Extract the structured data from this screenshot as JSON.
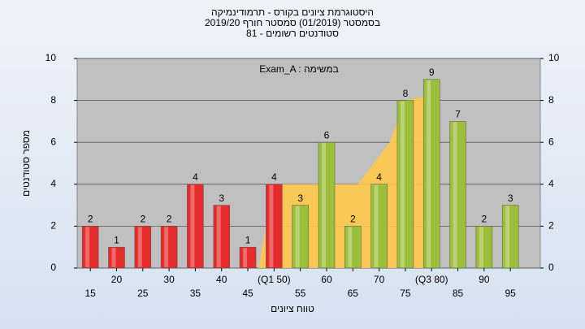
{
  "chart_data": {
    "type": "bar",
    "title": "היסטוגרמת ציונים בקורס - תרמודינמיקה",
    "subtitle": "בסמסטר  (01/2019)  סמסטר חורף 2019/20",
    "subtitle2": "81 - סטודנטים רשומים",
    "annotation": "Exam_A : במשימה",
    "xlabel": "טווח ציונים",
    "ylabel": "מספר סטודנטים",
    "x": [
      15,
      20,
      25,
      30,
      35,
      40,
      45,
      50,
      55,
      60,
      65,
      70,
      75,
      80,
      85,
      90,
      95
    ],
    "values": [
      2,
      1,
      2,
      2,
      4,
      3,
      1,
      4,
      3,
      6,
      2,
      4,
      8,
      9,
      7,
      2,
      3
    ],
    "colors": [
      "#e52b2b",
      "#e52b2b",
      "#e52b2b",
      "#e52b2b",
      "#e52b2b",
      "#e52b2b",
      "#e52b2b",
      "#e52b2b",
      "#9cbf3a",
      "#9cbf3a",
      "#9cbf3a",
      "#9cbf3a",
      "#9cbf3a",
      "#9cbf3a",
      "#9cbf3a",
      "#9cbf3a",
      "#9cbf3a"
    ],
    "area": {
      "x": [
        47,
        50,
        66,
        72,
        75,
        79,
        81
      ],
      "values": [
        0,
        4,
        4,
        6,
        8,
        8.2,
        0
      ],
      "color": "#ffc94a"
    },
    "xlim": [
      12.5,
      100.7
    ],
    "xticks": [
      15,
      20,
      25,
      30,
      35,
      40,
      45,
      {
        "value": 50,
        "label": "(Q1 50)"
      },
      55,
      60,
      65,
      70,
      75,
      {
        "value": 80,
        "label": "(Q3 80)"
      },
      85,
      90,
      95
    ],
    "ylim": [
      0,
      10
    ],
    "yticks": [
      0,
      2,
      4,
      6,
      8,
      10
    ],
    "y2lim": [
      0,
      10
    ],
    "y2ticks": [
      0,
      2,
      4,
      6,
      8,
      10
    ],
    "grid": true
  }
}
